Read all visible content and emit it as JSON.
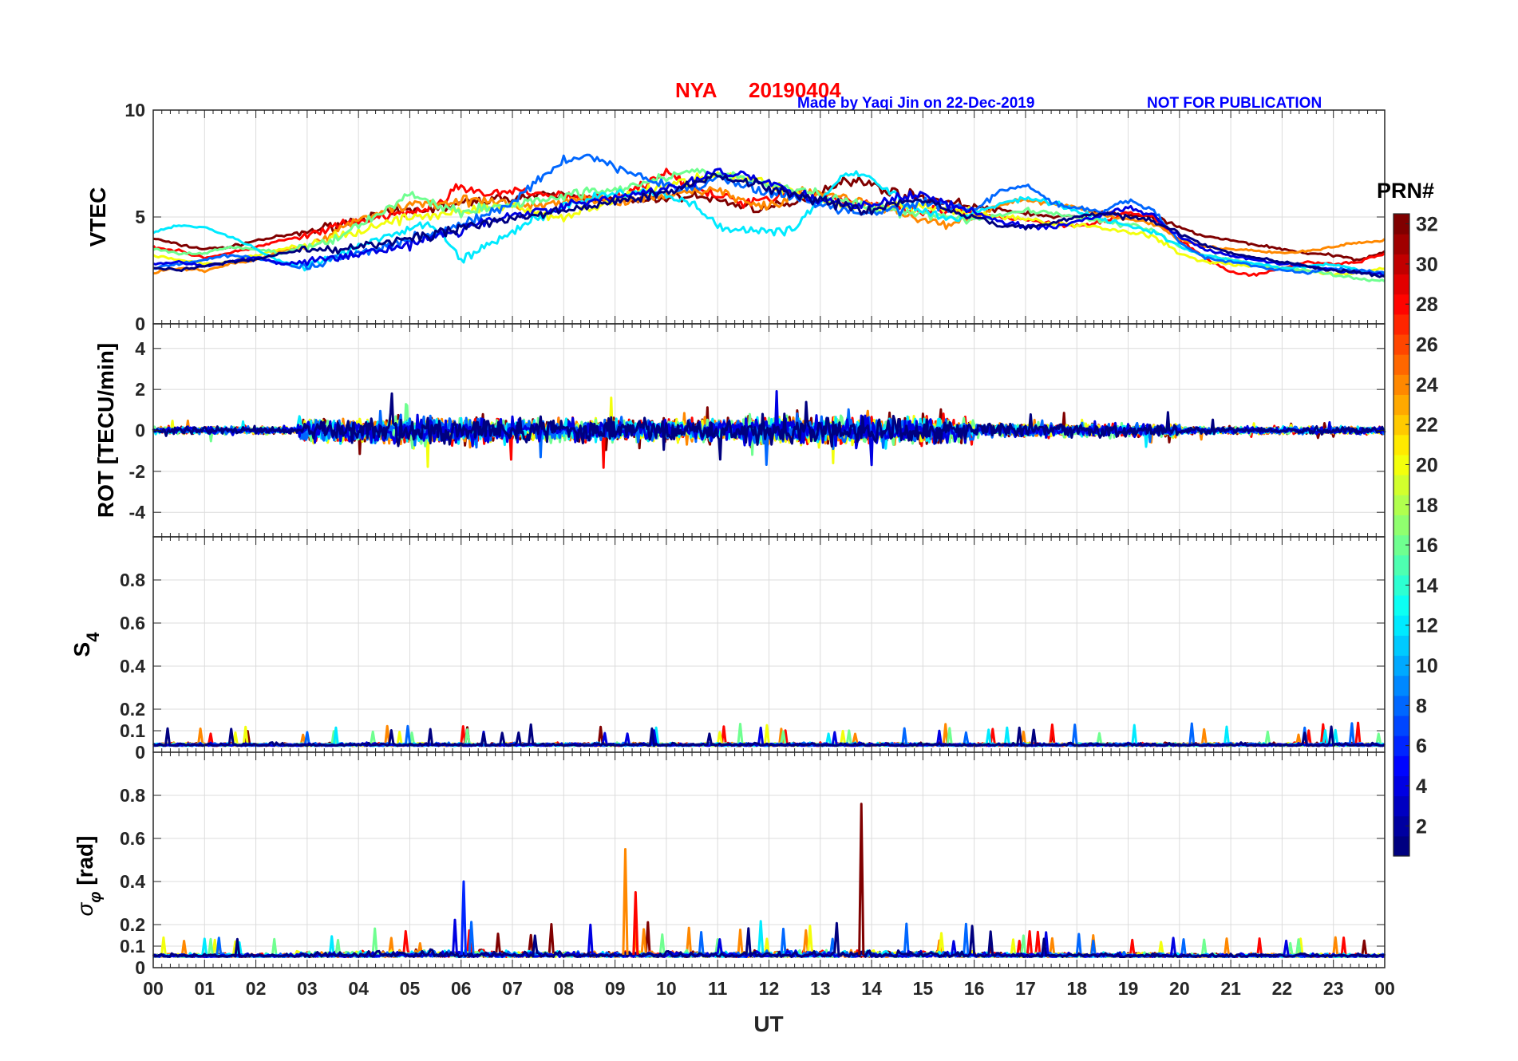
{
  "header": {
    "station": "NYA",
    "date": "20190404",
    "credit": "Made by Yaqi Jin on 22-Dec-2019",
    "notice": "NOT FOR PUBLICATION",
    "title_color": "#ff0000",
    "credit_color": "#0000ff"
  },
  "chart_data": [
    {
      "type": "line",
      "ylabel": "VTEC",
      "ylim": [
        0,
        10
      ],
      "yticks": [
        0,
        5,
        10
      ],
      "ytick_labels": [
        "0",
        "5",
        "10"
      ],
      "grid": true,
      "kind": "vtec"
    },
    {
      "type": "line",
      "ylabel": "ROT [TECU/min]",
      "ylim": [
        -5.2,
        5.2
      ],
      "yticks": [
        -4,
        -2,
        0,
        2,
        4
      ],
      "ytick_labels": [
        "-4",
        "-2",
        "0",
        "2",
        "4"
      ],
      "grid": true,
      "kind": "rot"
    },
    {
      "type": "line",
      "ylabel": "S",
      "ylabel_sub": "4",
      "ylim": [
        0,
        1
      ],
      "yticks": [
        0,
        0.1,
        0.2,
        0.4,
        0.6,
        0.8
      ],
      "ytick_labels": [
        "0",
        "0.1",
        "0.2",
        "0.4",
        "0.6",
        "0.8"
      ],
      "grid": true,
      "kind": "s4"
    },
    {
      "type": "line",
      "ylabel": "σ",
      "ylabel_sub": "φ",
      "ylabel_unit": "[rad]",
      "ylim": [
        0,
        1
      ],
      "yticks": [
        0,
        0.1,
        0.2,
        0.4,
        0.6,
        0.8
      ],
      "ytick_labels": [
        "0",
        "0.1",
        "0.2",
        "0.4",
        "0.6",
        "0.8"
      ],
      "grid": true,
      "kind": "sigphi"
    }
  ],
  "x_axis": {
    "label": "UT",
    "range": [
      0,
      24
    ],
    "tick_labels": [
      "00",
      "01",
      "02",
      "03",
      "04",
      "05",
      "06",
      "07",
      "08",
      "09",
      "10",
      "11",
      "12",
      "13",
      "14",
      "15",
      "16",
      "17",
      "18",
      "19",
      "20",
      "21",
      "22",
      "23",
      "00"
    ]
  },
  "colorbar": {
    "title": "PRN#",
    "range": [
      1,
      32
    ],
    "tick_values": [
      2,
      4,
      6,
      8,
      10,
      12,
      14,
      16,
      18,
      20,
      22,
      24,
      26,
      28,
      30,
      32
    ],
    "tick_labels": [
      "2",
      "4",
      "6",
      "8",
      "10",
      "12",
      "14",
      "16",
      "18",
      "20",
      "22",
      "24",
      "26",
      "28",
      "30",
      "32"
    ],
    "colormap": "jet"
  },
  "vtec_series": [
    {
      "prn": 32,
      "x": [
        0,
        0.5,
        1,
        1.5,
        2,
        2.5,
        3,
        3.5,
        4,
        4.5,
        5,
        5.5,
        6,
        6.5,
        7,
        7.5,
        8,
        8.5,
        9,
        9.5,
        10,
        10.5,
        11,
        11.5,
        12,
        12.5,
        13,
        13.5,
        14,
        14.5,
        15,
        15.5,
        16,
        16.5,
        17,
        17.5,
        18,
        18.5,
        19,
        19.5,
        20,
        20.5,
        21,
        21.5,
        22,
        22.5,
        23,
        23.5,
        24
      ],
      "y": [
        4.0,
        3.7,
        3.5,
        3.6,
        3.9,
        4.1,
        4.3,
        4.6,
        4.9,
        5.1,
        5.3,
        5.4,
        5.6,
        5.8,
        5.9,
        6.0,
        6.0,
        5.9,
        5.8,
        5.7,
        5.9,
        6.0,
        5.8,
        5.5,
        5.4,
        5.6,
        6.2,
        6.8,
        6.5,
        6.1,
        5.9,
        5.7,
        5.5,
        5.3,
        5.2,
        5.0,
        5.0,
        5.2,
        5.1,
        5.0,
        4.5,
        4.1,
        3.9,
        3.7,
        3.5,
        3.3,
        3.2,
        3.0,
        3.4
      ]
    },
    {
      "prn": 28,
      "x": [
        0,
        0.5,
        1,
        1.5,
        2,
        2.5,
        3,
        3.5,
        4,
        4.5,
        5,
        5.5,
        6,
        6.5,
        7,
        7.5,
        8,
        8.5,
        9,
        9.5,
        10,
        10.5,
        11,
        11.5,
        12,
        12.5,
        13,
        13.5,
        14,
        14.5,
        15,
        15.5,
        16,
        16.5,
        17,
        17.5,
        18,
        18.5,
        19,
        19.5,
        20,
        20.5,
        21,
        21.5,
        22,
        22.5,
        23,
        23.5,
        24
      ],
      "y": [
        3.6,
        3.4,
        3.1,
        3.3,
        3.6,
        3.9,
        4.1,
        4.5,
        4.8,
        5.0,
        5.2,
        5.5,
        6.5,
        6.0,
        6.2,
        6.1,
        6.0,
        5.8,
        6.0,
        6.4,
        7.2,
        6.3,
        6.0,
        5.7,
        5.9,
        6.2,
        6.0,
        5.8,
        5.6,
        5.4,
        5.2,
        5.3,
        5.1,
        5.0,
        4.9,
        4.7,
        4.6,
        4.8,
        5.2,
        5.0,
        3.9,
        3.1,
        2.4,
        2.3,
        2.6,
        2.9,
        2.8,
        2.9,
        3.3
      ]
    },
    {
      "prn": 24,
      "x": [
        0,
        0.5,
        1,
        1.5,
        2,
        2.5,
        3,
        3.5,
        4,
        4.5,
        5,
        5.5,
        6,
        6.5,
        7,
        7.5,
        8,
        8.5,
        9,
        9.5,
        10,
        10.5,
        11,
        11.5,
        12,
        12.5,
        13,
        13.5,
        14,
        14.5,
        15,
        15.5,
        16,
        16.5,
        17,
        17.5,
        18,
        18.5,
        19,
        19.5,
        20,
        20.5,
        21,
        21.5,
        22,
        22.5,
        23,
        23.5,
        24
      ],
      "y": [
        2.4,
        2.6,
        2.5,
        2.8,
        3.0,
        3.4,
        3.7,
        4.2,
        4.9,
        5.3,
        5.6,
        5.7,
        5.8,
        5.7,
        5.6,
        5.5,
        5.7,
        5.9,
        5.6,
        5.8,
        6.0,
        6.2,
        6.3,
        5.7,
        5.5,
        6.0,
        6.2,
        5.9,
        5.6,
        5.2,
        4.9,
        4.6,
        5.0,
        5.6,
        5.8,
        5.6,
        5.4,
        5.1,
        4.9,
        4.7,
        4.0,
        3.6,
        3.5,
        3.4,
        3.3,
        3.4,
        3.6,
        3.8,
        3.9
      ]
    },
    {
      "prn": 20,
      "x": [
        0,
        0.5,
        1,
        1.5,
        2,
        2.5,
        3,
        3.5,
        4,
        4.5,
        5,
        5.5,
        6,
        6.5,
        7,
        7.5,
        8,
        8.5,
        9,
        9.5,
        10,
        10.5,
        11,
        11.5,
        12,
        12.5,
        13,
        13.5,
        14,
        14.5,
        15,
        15.5,
        16,
        16.5,
        17,
        17.5,
        18,
        18.5,
        19,
        19.5,
        20,
        20.5,
        21,
        21.5,
        22,
        22.5,
        23,
        23.5,
        24
      ],
      "y": [
        3.2,
        3.0,
        2.8,
        2.9,
        3.2,
        3.5,
        3.7,
        4.0,
        4.3,
        4.7,
        5.0,
        5.1,
        5.3,
        5.4,
        5.5,
        5.2,
        5.0,
        5.4,
        5.8,
        6.2,
        6.4,
        6.8,
        7.0,
        6.8,
        6.6,
        6.1,
        5.8,
        5.5,
        5.3,
        5.5,
        5.4,
        5.3,
        5.2,
        5.0,
        4.9,
        4.7,
        4.6,
        4.5,
        4.3,
        4.1,
        3.3,
        2.9,
        2.8,
        2.7,
        2.6,
        2.5,
        2.3,
        2.4,
        2.6
      ]
    },
    {
      "prn": 16,
      "x": [
        0,
        0.5,
        1,
        1.5,
        2,
        2.5,
        3,
        3.5,
        4,
        4.5,
        5,
        5.5,
        6,
        6.5,
        7,
        7.5,
        8,
        8.5,
        9,
        9.5,
        10,
        10.5,
        11,
        11.5,
        12,
        12.5,
        13,
        13.5,
        14,
        14.5,
        15,
        15.5,
        16,
        16.5,
        17,
        17.5,
        18,
        18.5,
        19,
        19.5,
        20,
        20.5,
        21,
        21.5,
        22,
        22.5,
        23,
        23.5,
        24
      ],
      "y": [
        3.5,
        3.3,
        3.3,
        3.6,
        3.5,
        3.3,
        3.6,
        3.9,
        4.6,
        5.3,
        6.1,
        5.6,
        5.2,
        5.4,
        5.6,
        5.8,
        6.0,
        6.2,
        6.3,
        6.6,
        6.9,
        7.1,
        7.0,
        6.8,
        6.5,
        6.3,
        6.0,
        5.7,
        5.5,
        5.3,
        5.2,
        5.0,
        4.9,
        5.1,
        5.3,
        5.2,
        5.0,
        4.8,
        4.6,
        4.4,
        3.6,
        3.2,
        3.0,
        2.8,
        2.6,
        2.5,
        2.3,
        2.1,
        2.0
      ]
    },
    {
      "prn": 12,
      "x": [
        0,
        0.5,
        1,
        1.5,
        2,
        2.5,
        3,
        3.5,
        4,
        4.5,
        5,
        5.5,
        6,
        6.5,
        7,
        7.5,
        8,
        8.5,
        9,
        9.5,
        10,
        10.5,
        11,
        11.5,
        12,
        12.5,
        13,
        13.5,
        14,
        14.5,
        15,
        15.5,
        16,
        16.5,
        17,
        17.5,
        18,
        18.5,
        19,
        19.5,
        20,
        20.5,
        21,
        21.5,
        22,
        22.5,
        23,
        23.5,
        24
      ],
      "y": [
        4.3,
        4.6,
        4.5,
        4.1,
        3.5,
        2.9,
        2.7,
        3.1,
        3.6,
        4.0,
        4.4,
        4.6,
        3.0,
        3.6,
        4.3,
        5.0,
        5.5,
        5.9,
        6.1,
        6.2,
        6.0,
        5.6,
        4.6,
        4.4,
        4.3,
        4.5,
        5.8,
        7.2,
        6.8,
        5.9,
        5.2,
        4.9,
        5.2,
        5.6,
        5.9,
        5.7,
        5.3,
        4.9,
        4.6,
        4.3,
        3.6,
        3.2,
        3.0,
        2.8,
        2.6,
        2.7,
        2.8,
        2.5,
        2.3
      ]
    },
    {
      "prn": 8,
      "x": [
        0,
        0.5,
        1,
        1.5,
        2,
        2.5,
        3,
        3.5,
        4,
        4.5,
        5,
        5.5,
        6,
        6.5,
        7,
        7.5,
        8,
        8.5,
        9,
        9.5,
        10,
        10.5,
        11,
        11.5,
        12,
        12.5,
        13,
        13.5,
        14,
        14.5,
        15,
        15.5,
        16,
        16.5,
        17,
        17.5,
        18,
        18.5,
        19,
        19.5,
        20,
        20.5,
        21,
        21.5,
        22,
        22.5,
        23,
        23.5,
        24
      ],
      "y": [
        2.6,
        2.8,
        3.0,
        3.2,
        3.1,
        2.8,
        2.6,
        3.0,
        3.3,
        3.6,
        4.0,
        4.3,
        4.6,
        5.1,
        5.6,
        6.8,
        7.6,
        7.9,
        7.3,
        6.9,
        6.5,
        6.3,
        6.8,
        6.5,
        6.2,
        5.9,
        5.6,
        5.3,
        5.1,
        5.4,
        5.7,
        5.5,
        5.3,
        6.2,
        6.5,
        5.7,
        5.4,
        5.2,
        5.8,
        5.3,
        3.8,
        3.1,
        2.9,
        2.7,
        2.5,
        2.4,
        2.6,
        2.5,
        2.4
      ]
    },
    {
      "prn": 4,
      "x": [
        0,
        0.5,
        1,
        1.5,
        2,
        2.5,
        3,
        3.5,
        4,
        4.5,
        5,
        5.5,
        6,
        6.5,
        7,
        7.5,
        8,
        8.5,
        9,
        9.5,
        10,
        10.5,
        11,
        11.5,
        12,
        12.5,
        13,
        13.5,
        14,
        14.5,
        15,
        15.5,
        16,
        16.5,
        17,
        17.5,
        18,
        18.5,
        19,
        19.5,
        20,
        20.5,
        21,
        21.5,
        22,
        22.5,
        23,
        23.5,
        24
      ],
      "y": [
        2.8,
        2.9,
        2.7,
        2.9,
        3.1,
        2.8,
        2.9,
        3.1,
        3.3,
        3.5,
        3.7,
        4.1,
        4.4,
        4.8,
        5.1,
        5.3,
        5.5,
        5.7,
        5.9,
        6.1,
        6.3,
        6.6,
        7.2,
        7.0,
        6.6,
        6.2,
        5.8,
        5.5,
        5.7,
        5.9,
        6.1,
        5.6,
        5.2,
        4.8,
        4.6,
        4.5,
        4.8,
        5.1,
        5.5,
        5.0,
        4.1,
        3.5,
        3.2,
        3.0,
        2.8,
        2.7,
        2.5,
        2.4,
        2.3
      ]
    },
    {
      "prn": 1,
      "x": [
        0,
        0.5,
        1,
        1.5,
        2,
        2.5,
        3,
        3.5,
        4,
        4.5,
        5,
        5.5,
        6,
        6.5,
        7,
        7.5,
        8,
        8.5,
        9,
        9.5,
        10,
        10.5,
        11,
        11.5,
        12,
        12.5,
        13,
        13.5,
        14,
        14.5,
        15,
        15.5,
        16,
        16.5,
        17,
        17.5,
        18,
        18.5,
        19,
        19.5,
        20,
        20.5,
        21,
        21.5,
        22,
        22.5,
        23,
        23.5,
        24
      ],
      "y": [
        2.6,
        2.5,
        2.7,
        2.9,
        3.0,
        3.3,
        3.5,
        3.4,
        3.6,
        3.8,
        4.0,
        4.2,
        4.5,
        4.7,
        4.9,
        5.1,
        5.3,
        5.5,
        5.7,
        5.9,
        6.2,
        6.6,
        6.9,
        6.7,
        6.4,
        6.1,
        5.8,
        5.5,
        5.3,
        5.6,
        5.9,
        5.4,
        5.0,
        4.6,
        4.5,
        4.7,
        5.0,
        5.2,
        5.0,
        4.8,
        4.2,
        3.7,
        3.3,
        3.1,
        2.9,
        2.7,
        2.5,
        2.4,
        2.2
      ]
    }
  ]
}
